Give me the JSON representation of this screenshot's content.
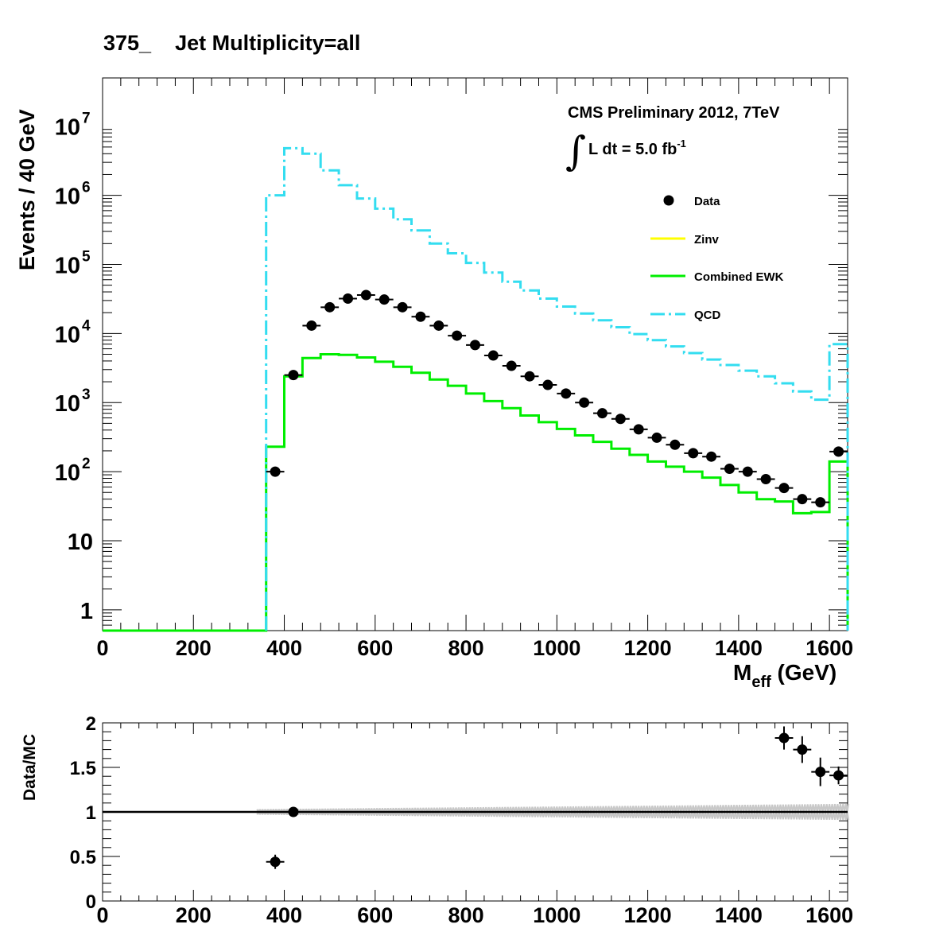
{
  "title": "375_    Jet Multiplicity=all",
  "annotation": {
    "experiment": "CMS Preliminary 2012, 7TeV",
    "lumi_prefix": "L dt = 5.0 fb",
    "lumi_exp": "-1"
  },
  "chart_data": [
    {
      "type": "line",
      "panel": "main",
      "xlabel_main": "M",
      "xlabel_sub": "eff",
      "xlabel_unit": " (GeV)",
      "ylabel": "Events / 40 GeV",
      "xlim": [
        0,
        1640
      ],
      "ylim": [
        0.5,
        50000000
      ],
      "log_y": true,
      "x_ticks": [
        "0",
        "200",
        "400",
        "600",
        "800",
        "1000",
        "1200",
        "1400",
        "1600"
      ],
      "y_ticks": [
        {
          "value": 1,
          "label": "1"
        },
        {
          "value": 10,
          "label": "10"
        },
        {
          "value": 100,
          "base": "10",
          "exp": "2"
        },
        {
          "value": 1000,
          "base": "10",
          "exp": "3"
        },
        {
          "value": 10000,
          "base": "10",
          "exp": "4"
        },
        {
          "value": 100000,
          "base": "10",
          "exp": "5"
        },
        {
          "value": 1000000,
          "base": "10",
          "exp": "6"
        },
        {
          "value": 10000000,
          "base": "10",
          "exp": "7"
        }
      ],
      "legend_position": "top-right",
      "series": [
        {
          "name": "Data",
          "style": "markers",
          "color": "#000000",
          "x": [
            380,
            420,
            460,
            500,
            540,
            580,
            620,
            660,
            700,
            740,
            780,
            820,
            860,
            900,
            940,
            980,
            1020,
            1060,
            1100,
            1140,
            1180,
            1220,
            1260,
            1300,
            1340,
            1380,
            1420,
            1460,
            1500,
            1540,
            1580,
            1620
          ],
          "values": [
            100,
            2500,
            13000,
            24000,
            32000,
            36000,
            31000,
            24000,
            17500,
            13000,
            9300,
            6800,
            4800,
            3400,
            2400,
            1800,
            1350,
            1000,
            700,
            580,
            410,
            310,
            245,
            185,
            165,
            110,
            100,
            78,
            58,
            40,
            36,
            195
          ]
        },
        {
          "name": "Zinv",
          "style": "step",
          "color": "#ffff00",
          "x": [],
          "values": []
        },
        {
          "name": "Combined EWK",
          "style": "step",
          "color": "#00ee00",
          "x": [
            0,
            360,
            400,
            440,
            480,
            520,
            560,
            600,
            640,
            680,
            720,
            760,
            800,
            840,
            880,
            920,
            960,
            1000,
            1040,
            1080,
            1120,
            1160,
            1200,
            1240,
            1280,
            1320,
            1360,
            1400,
            1440,
            1480,
            1520,
            1560,
            1600
          ],
          "values": [
            0.5,
            230,
            2400,
            4400,
            5000,
            4900,
            4500,
            3900,
            3300,
            2700,
            2150,
            1750,
            1350,
            1050,
            830,
            650,
            520,
            415,
            335,
            270,
            215,
            175,
            140,
            118,
            100,
            82,
            64,
            50,
            40,
            37,
            25,
            26,
            140
          ]
        },
        {
          "name": "QCD",
          "style": "step-dashdot",
          "color": "#33ddf0",
          "x": [
            360,
            400,
            440,
            480,
            520,
            560,
            600,
            640,
            680,
            720,
            760,
            800,
            840,
            880,
            920,
            960,
            1000,
            1040,
            1080,
            1120,
            1160,
            1200,
            1240,
            1280,
            1320,
            1360,
            1400,
            1440,
            1480,
            1520,
            1560,
            1600
          ],
          "values": [
            1000000,
            4800000,
            4000000,
            2300000,
            1400000,
            900000,
            640000,
            450000,
            310000,
            200000,
            145000,
            105000,
            76000,
            56000,
            42000,
            32000,
            24500,
            19500,
            15500,
            12300,
            9800,
            8000,
            6500,
            5200,
            4200,
            3500,
            2900,
            2400,
            1900,
            1450,
            1100,
            7000
          ]
        }
      ]
    },
    {
      "type": "scatter",
      "panel": "ratio",
      "ylabel": "Data/MC",
      "xlim": [
        0,
        1640
      ],
      "ylim": [
        0,
        2
      ],
      "x_ticks": [
        "0",
        "200",
        "400",
        "600",
        "800",
        "1000",
        "1200",
        "1400",
        "1600"
      ],
      "y_ticks": [
        {
          "value": 0,
          "label": "0"
        },
        {
          "value": 0.5,
          "label": "0.5"
        },
        {
          "value": 1,
          "label": "1"
        },
        {
          "value": 1.5,
          "label": "1.5"
        },
        {
          "value": 2,
          "label": "2"
        }
      ],
      "reference_line": 1,
      "points": {
        "x": [
          380,
          420,
          1500,
          1540,
          1580,
          1620
        ],
        "values": [
          0.44,
          1.0,
          1.83,
          1.7,
          1.45,
          1.41
        ],
        "errors": [
          0.08,
          0.02,
          0.13,
          0.15,
          0.16,
          0.1
        ]
      },
      "uncertainty_band_color": "#c8c8c8"
    }
  ]
}
